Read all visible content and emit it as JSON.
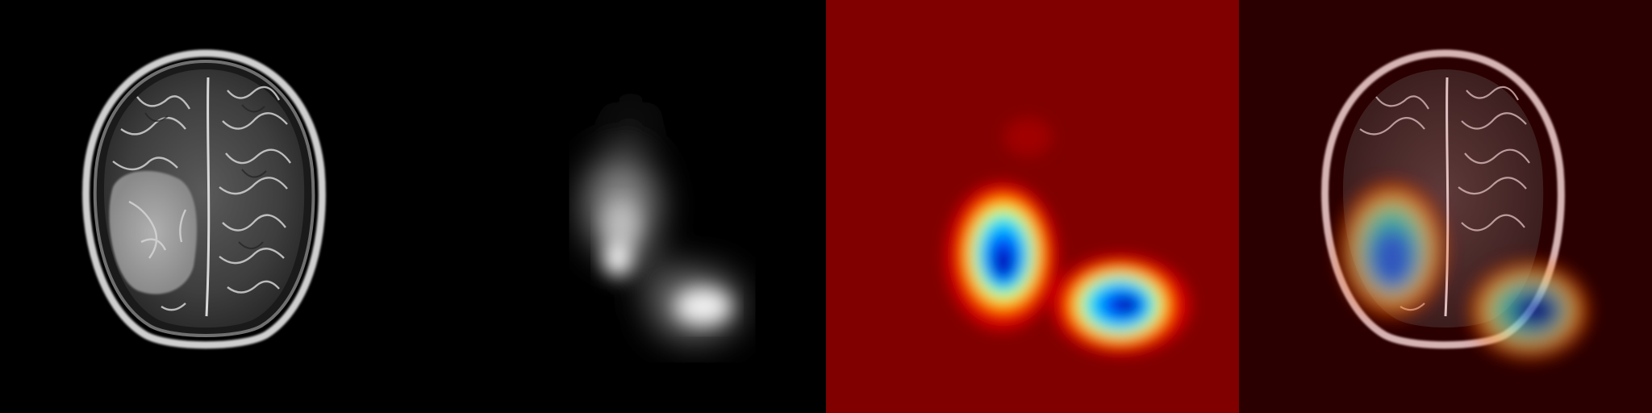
{
  "figure": {
    "panels": [
      {
        "id": "mri",
        "kind": "grayscale-mri-axial-slice"
      },
      {
        "id": "mask",
        "kind": "grayscale-activation-map"
      },
      {
        "id": "heatmap",
        "kind": "jet-colormap-activation-map"
      },
      {
        "id": "overlay",
        "kind": "heatmap-over-mri-overlay"
      }
    ],
    "colors": {
      "background": "#000000",
      "jet_low": "#800000",
      "jet_high": "#00008f",
      "overlay_tint": "#2a0000"
    }
  }
}
